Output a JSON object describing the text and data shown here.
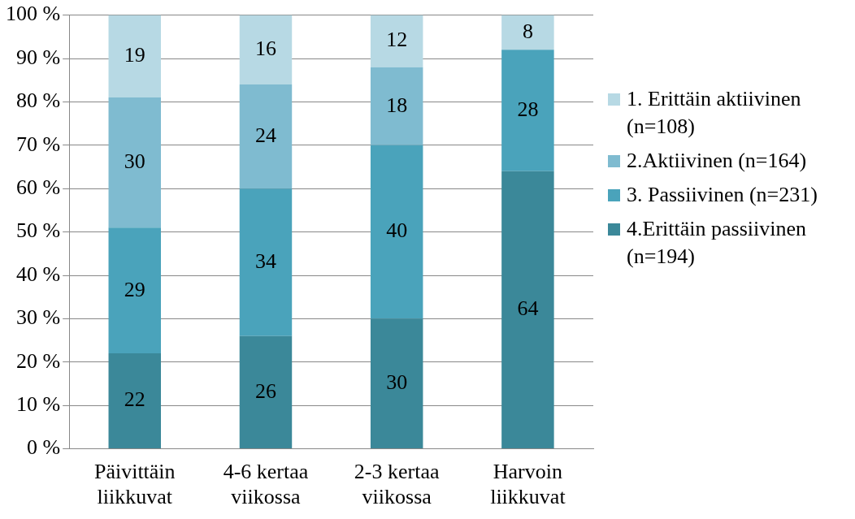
{
  "chart_data": {
    "type": "bar",
    "stacked": true,
    "categories": [
      "Päivittäin liikkuvat",
      "4-6 kertaa viikossa",
      "2-3 kertaa viikossa",
      "Harvoin liikkuvat"
    ],
    "series": [
      {
        "name": "4.Erittäin passiivinen (n=194)",
        "color": "#3b8899",
        "values": [
          22,
          26,
          30,
          64
        ]
      },
      {
        "name": "3. Passiivinen (n=231)",
        "color": "#4aa3bb",
        "values": [
          29,
          34,
          40,
          28
        ]
      },
      {
        "name": "2.Aktiivinen (n=164)",
        "color": "#7fbbd0",
        "values": [
          30,
          24,
          18,
          null
        ]
      },
      {
        "name": "1. Erittäin aktiivinen (n=108)",
        "color": "#b7d9e4",
        "values": [
          19,
          16,
          12,
          8
        ]
      }
    ],
    "ylim": [
      0,
      100
    ],
    "yticks": [
      {
        "value": 0,
        "label": "0 %"
      },
      {
        "value": 10,
        "label": "10 %"
      },
      {
        "value": 20,
        "label": "20 %"
      },
      {
        "value": 30,
        "label": "30 %"
      },
      {
        "value": 40,
        "label": "40 %"
      },
      {
        "value": 50,
        "label": "50 %"
      },
      {
        "value": 60,
        "label": "60 %"
      },
      {
        "value": 70,
        "label": "70 %"
      },
      {
        "value": 80,
        "label": "80 %"
      },
      {
        "value": 90,
        "label": "90 %"
      },
      {
        "value": 100,
        "label": "100 %"
      }
    ],
    "grid": "y",
    "legend": "right",
    "data_labels": true
  }
}
